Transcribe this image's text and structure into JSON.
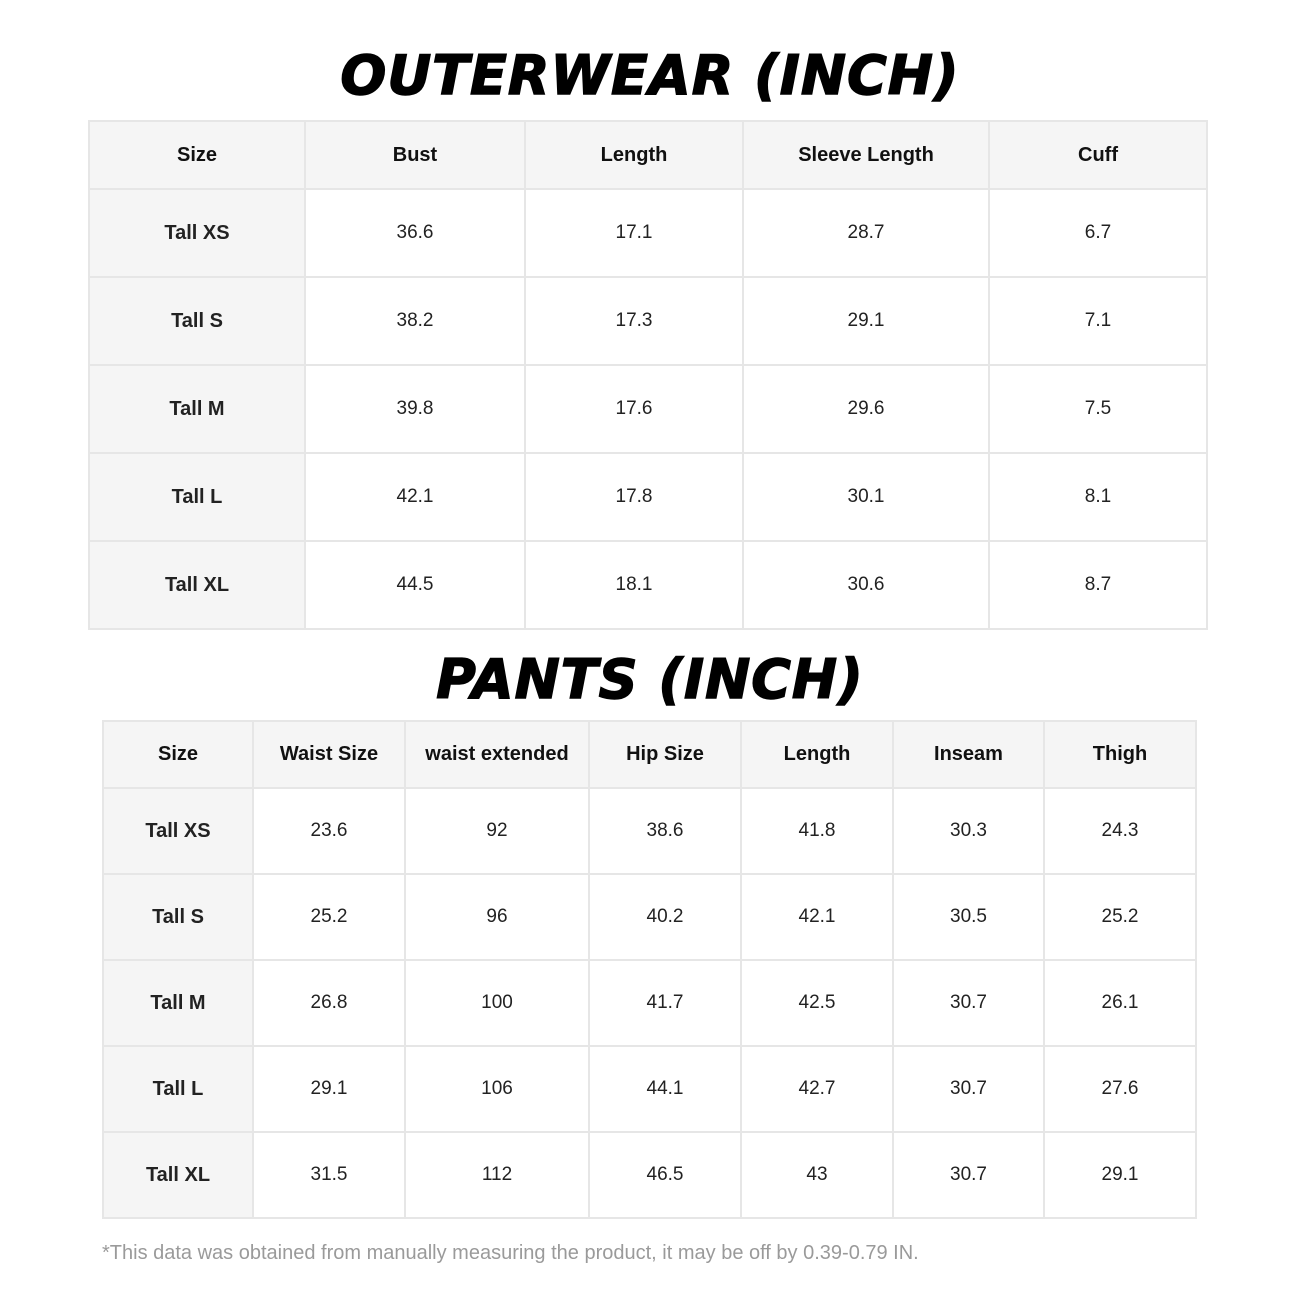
{
  "outerwear": {
    "title": "OUTERWEAR (INCH)",
    "headers": [
      "Size",
      "Bust",
      "Length",
      "Sleeve Length",
      "Cuff"
    ],
    "rows": [
      [
        "Tall XS",
        "36.6",
        "17.1",
        "28.7",
        "6.7"
      ],
      [
        "Tall S",
        "38.2",
        "17.3",
        "29.1",
        "7.1"
      ],
      [
        "Tall M",
        "39.8",
        "17.6",
        "29.6",
        "7.5"
      ],
      [
        "Tall L",
        "42.1",
        "17.8",
        "30.1",
        "8.1"
      ],
      [
        "Tall XL",
        "44.5",
        "18.1",
        "30.6",
        "8.7"
      ]
    ]
  },
  "pants": {
    "title": "PANTS (INCH)",
    "headers": [
      "Size",
      "Waist Size",
      "waist extended",
      "Hip Size",
      "Length",
      "Inseam",
      "Thigh"
    ],
    "rows": [
      [
        "Tall XS",
        "23.6",
        "92",
        "38.6",
        "41.8",
        "30.3",
        "24.3"
      ],
      [
        "Tall S",
        "25.2",
        "96",
        "40.2",
        "42.1",
        "30.5",
        "25.2"
      ],
      [
        "Tall M",
        "26.8",
        "100",
        "41.7",
        "42.5",
        "30.7",
        "26.1"
      ],
      [
        "Tall L",
        "29.1",
        "106",
        "44.1",
        "42.7",
        "30.7",
        "27.6"
      ],
      [
        "Tall XL",
        "31.5",
        "112",
        "46.5",
        "43",
        "30.7",
        "29.1"
      ]
    ]
  },
  "footnote": "*This data was obtained from manually measuring the product, it may be off by 0.39-0.79 IN."
}
